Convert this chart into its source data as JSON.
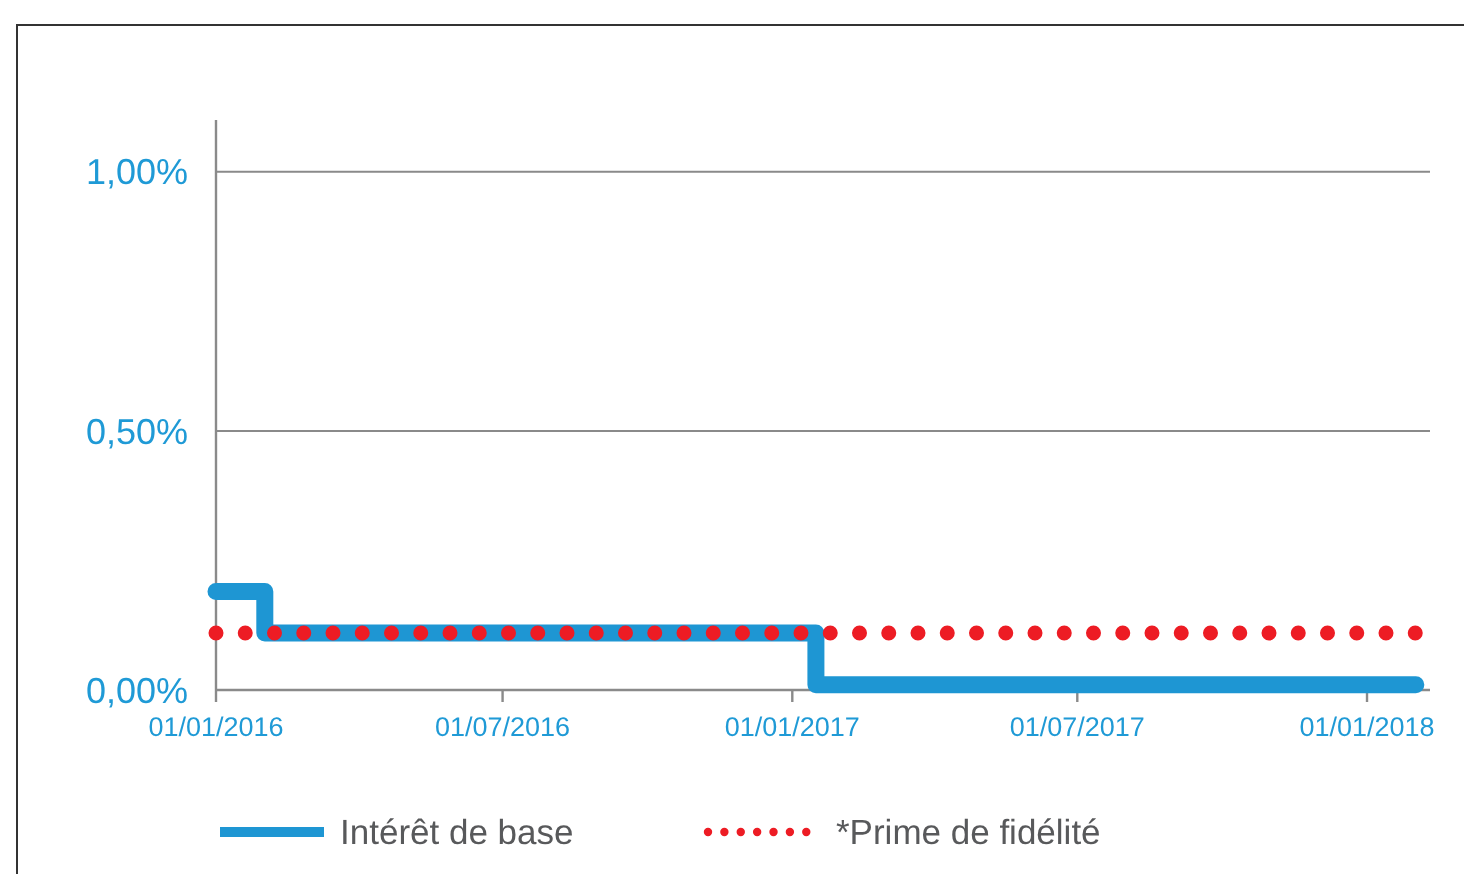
{
  "chart_data": {
    "type": "step",
    "series": [
      {
        "name": "Intérêt de base",
        "color": "#1e96d3",
        "type": "step",
        "line_style": "solid",
        "x": [
          "2016-01-01",
          "2016-02-01",
          "2017-01-16",
          "2018-02-01"
        ],
        "values": [
          0.19,
          0.11,
          0.01,
          0.01
        ]
      },
      {
        "name": "*Prime de fidélité",
        "color": "#ed1c24",
        "type": "line",
        "line_style": "dotted",
        "x": [
          "2016-01-01",
          "2018-02-01"
        ],
        "values": [
          0.11,
          0.11
        ]
      }
    ],
    "xlim": [
      "2016-01-01",
      "2018-02-10"
    ],
    "xticks": [
      {
        "value": "2016-01-01",
        "label": "01/01/2016"
      },
      {
        "value": "2016-07-01",
        "label": "01/07/2016"
      },
      {
        "value": "2017-01-01",
        "label": "01/01/2017"
      },
      {
        "value": "2017-07-01",
        "label": "01/07/2017"
      },
      {
        "value": "2018-01-01",
        "label": "01/01/2018"
      }
    ],
    "ylim": [
      0,
      1.1
    ],
    "yticks": [
      {
        "value": 0,
        "label": "0,00%"
      },
      {
        "value": 0.5,
        "label": "0,50%"
      },
      {
        "value": 1,
        "label": "1,00%"
      }
    ],
    "grid": "y",
    "legend": "bottom"
  }
}
